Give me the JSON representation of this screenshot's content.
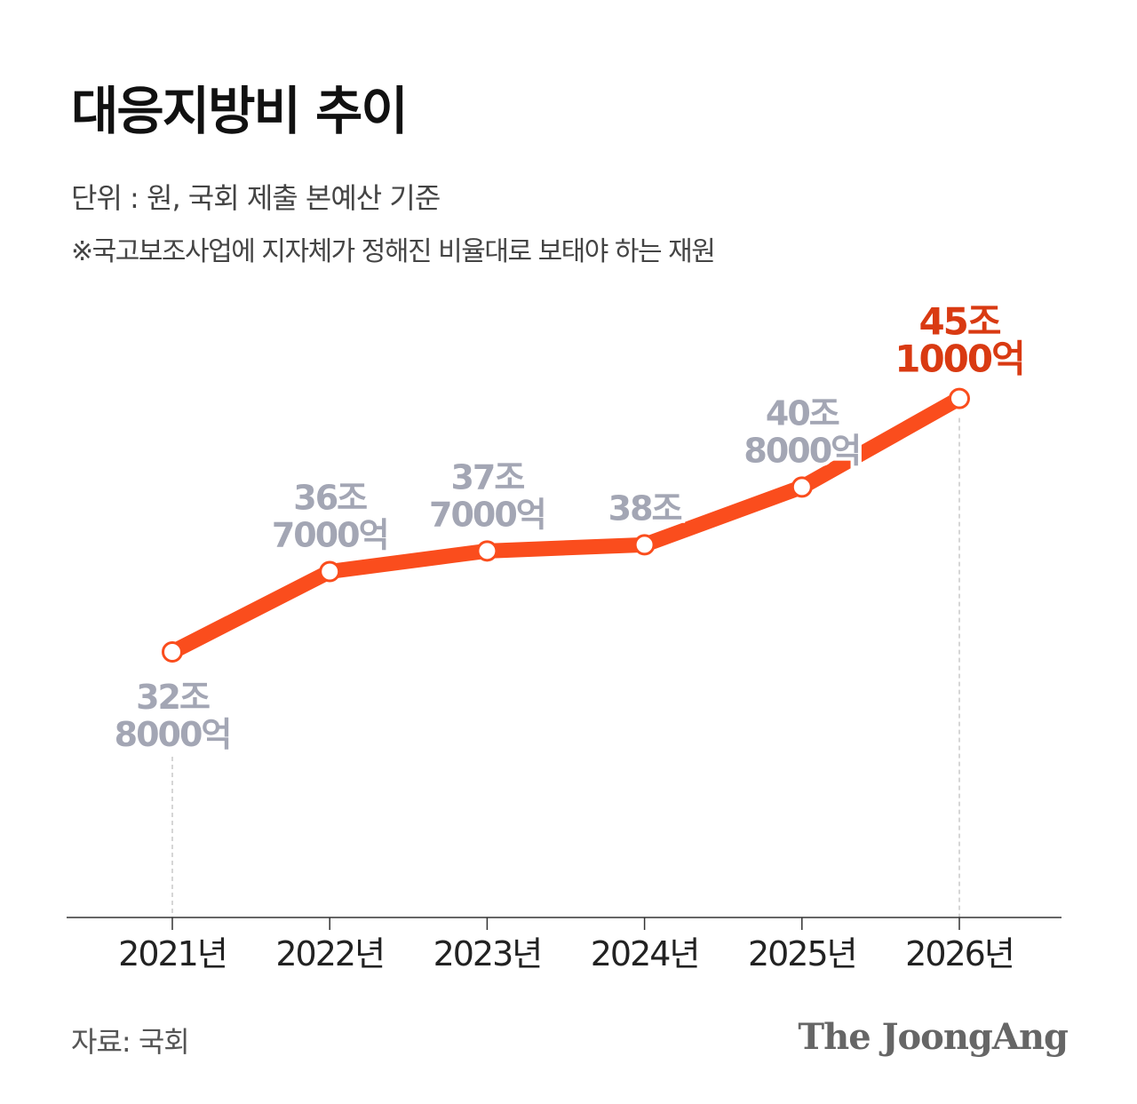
{
  "title": "대응지방비 추이",
  "subtitle": "단위 : 원, 국회 제출 본예산 기준",
  "note": "※국고보조사업에 지자체가 정해진 비율대로 보태야 하는 재원",
  "source": "자료: 국회",
  "logo": "The JoongAng",
  "colors": {
    "line": "#fa4d1d",
    "highlight_label": "#d93a12",
    "label": "#a3a6b4",
    "axis": "#333333",
    "guide": "#c8c8c8"
  },
  "chart_data": {
    "type": "line",
    "categories": [
      "2021년",
      "2022년",
      "2023년",
      "2024년",
      "2025년",
      "2026년"
    ],
    "values": [
      32.8,
      36.7,
      37.7,
      38.0,
      40.8,
      45.1
    ],
    "value_unit": "조",
    "data_labels": [
      [
        "32조",
        "8000억"
      ],
      [
        "36조",
        "7000억"
      ],
      [
        "37조",
        "7000억"
      ],
      [
        "38조"
      ],
      [
        "40조",
        "8000억"
      ],
      [
        "45조",
        "1000억"
      ]
    ],
    "highlight_index": 5,
    "grid": false,
    "legend": "none"
  }
}
